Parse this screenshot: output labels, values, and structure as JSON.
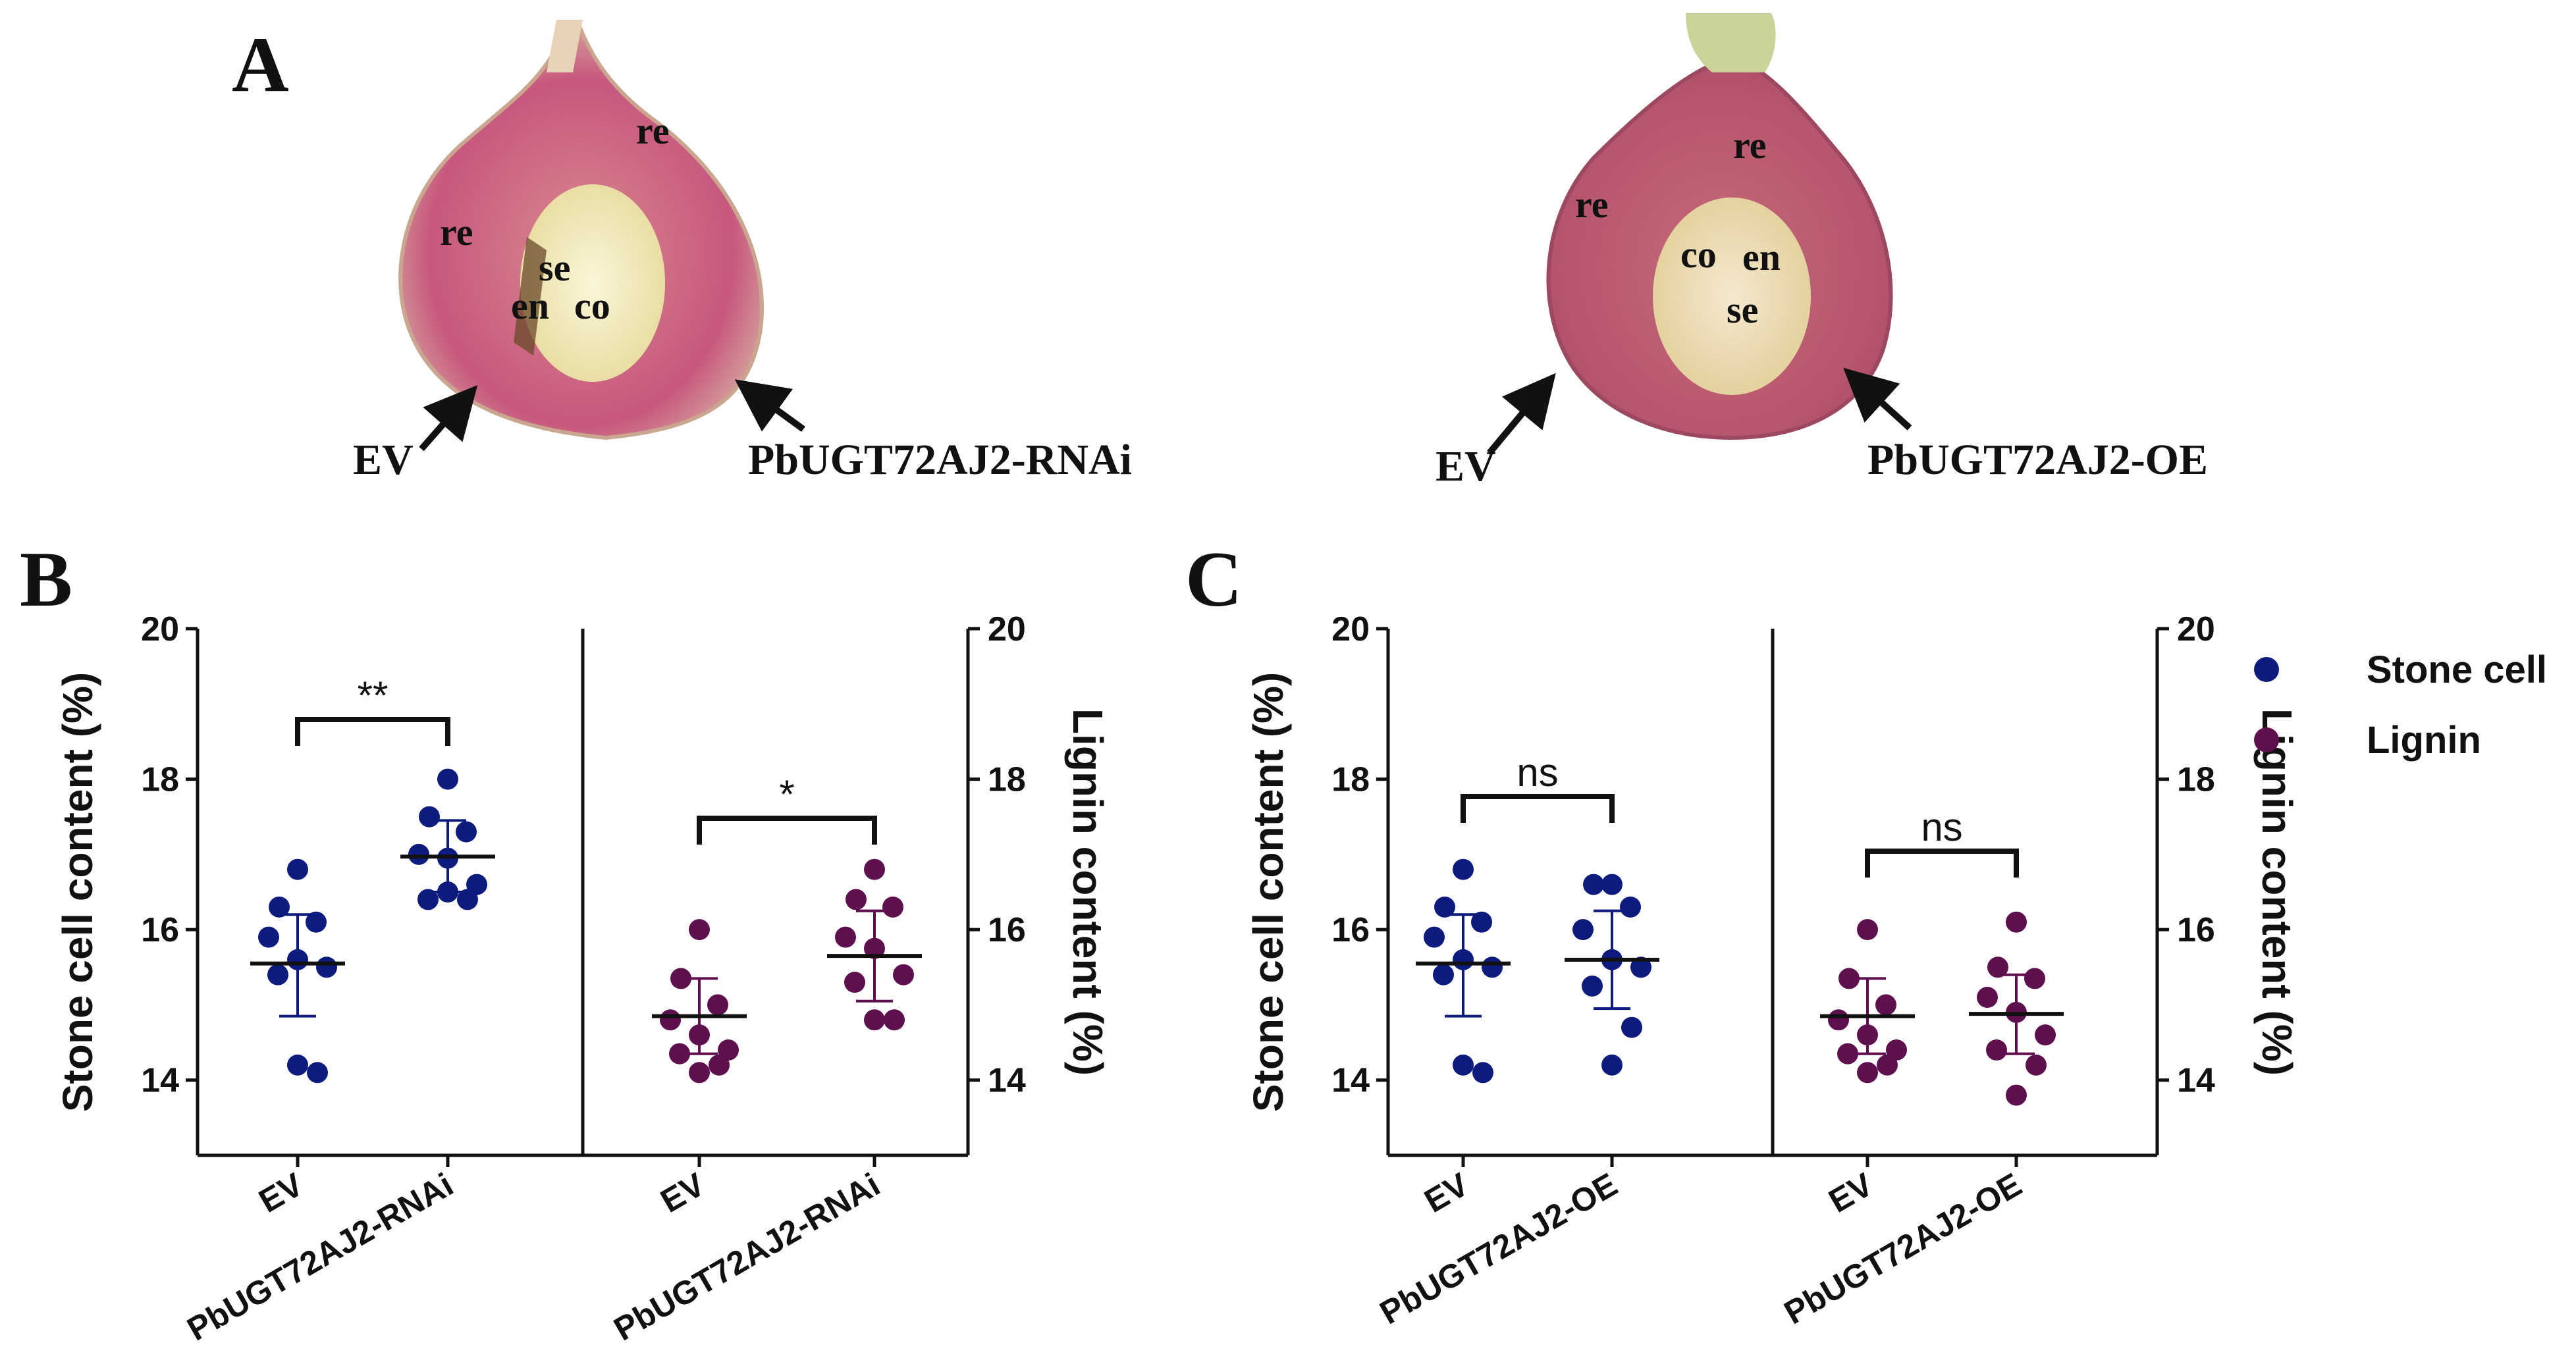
{
  "colors": {
    "stone": "#0d1a7e",
    "lignin": "#5e0f4d",
    "axis": "#111111",
    "fruit_flesh": "#c26a7a",
    "fruit_dark": "#b0306a",
    "core": "#f2ecc0"
  },
  "panel_a": {
    "letter": "A",
    "left_photo": {
      "labels": [
        "re",
        "re",
        "se",
        "en",
        "co"
      ],
      "arrow_labels": [
        "EV",
        "PbUGT72AJ2-RNAi"
      ]
    },
    "right_photo": {
      "labels": [
        "re",
        "re",
        "co",
        "en",
        "se"
      ],
      "arrow_labels": [
        "EV",
        "PbUGT72AJ2-OE"
      ]
    }
  },
  "legend": [
    {
      "label": "Stone cell",
      "color": "#0d1a7e"
    },
    {
      "label": "Lignin",
      "color": "#5e0f4d"
    }
  ],
  "chart_data": [
    {
      "panel": "B",
      "type": "scatter",
      "ylabel_left": "Stone cell content (%)",
      "ylabel_right": "Lignin content (%)",
      "ylim": [
        13,
        20
      ],
      "yticks": [
        14,
        16,
        18,
        20
      ],
      "groups": [
        {
          "category": "EV",
          "series": "Stone cell",
          "values": [
            16.8,
            16.3,
            16.1,
            15.9,
            15.6,
            15.5,
            15.4,
            14.1,
            14.2
          ],
          "mean": 15.55,
          "sd_low": 14.85,
          "sd_high": 16.2
        },
        {
          "category": "PbUGT72AJ2-RNAi",
          "series": "Stone cell",
          "values": [
            18.0,
            17.5,
            17.3,
            17.0,
            16.95,
            16.6,
            16.4,
            16.4,
            16.5
          ],
          "mean": 16.97,
          "sd_low": 16.5,
          "sd_high": 17.45
        },
        {
          "category": "EV",
          "series": "Lignin",
          "values": [
            16.0,
            15.35,
            15.0,
            14.8,
            14.6,
            14.4,
            14.35,
            14.2,
            14.1
          ],
          "mean": 14.85,
          "sd_low": 14.35,
          "sd_high": 15.35
        },
        {
          "category": "PbUGT72AJ2-RNAi",
          "series": "Lignin",
          "values": [
            16.8,
            16.4,
            16.3,
            15.9,
            15.75,
            15.4,
            15.3,
            14.8,
            14.8
          ],
          "mean": 15.65,
          "sd_low": 15.05,
          "sd_high": 16.25
        }
      ],
      "significance": [
        {
          "pair": [
            "EV",
            "PbUGT72AJ2-RNAi"
          ],
          "series": "Stone cell",
          "label": "**"
        },
        {
          "pair": [
            "EV",
            "PbUGT72AJ2-RNAi"
          ],
          "series": "Lignin",
          "label": "*"
        }
      ]
    },
    {
      "panel": "C",
      "type": "scatter",
      "ylabel_left": "Stone cell content (%)",
      "ylabel_right": "Lignin content (%)",
      "ylim": [
        13,
        20
      ],
      "yticks": [
        14,
        16,
        18,
        20
      ],
      "groups": [
        {
          "category": "EV",
          "series": "Stone cell",
          "values": [
            16.8,
            16.3,
            16.1,
            15.9,
            15.6,
            15.5,
            15.4,
            14.1,
            14.2
          ],
          "mean": 15.55,
          "sd_low": 14.85,
          "sd_high": 16.2
        },
        {
          "category": "PbUGT72AJ2-OE",
          "series": "Stone cell",
          "values": [
            16.6,
            16.6,
            16.3,
            16.0,
            15.6,
            15.5,
            15.25,
            14.7,
            14.2
          ],
          "mean": 15.6,
          "sd_low": 14.95,
          "sd_high": 16.25
        },
        {
          "category": "EV",
          "series": "Lignin",
          "values": [
            16.0,
            15.35,
            15.0,
            14.8,
            14.6,
            14.4,
            14.35,
            14.2,
            14.1
          ],
          "mean": 14.85,
          "sd_low": 14.35,
          "sd_high": 15.35
        },
        {
          "category": "PbUGT72AJ2-OE",
          "series": "Lignin",
          "values": [
            16.1,
            15.5,
            15.35,
            15.1,
            14.9,
            14.6,
            14.4,
            14.2,
            13.8
          ],
          "mean": 14.88,
          "sd_low": 14.35,
          "sd_high": 15.4
        }
      ],
      "significance": [
        {
          "pair": [
            "EV",
            "PbUGT72AJ2-OE"
          ],
          "series": "Stone cell",
          "label": "ns"
        },
        {
          "pair": [
            "EV",
            "PbUGT72AJ2-OE"
          ],
          "series": "Lignin",
          "label": "ns"
        }
      ]
    }
  ]
}
